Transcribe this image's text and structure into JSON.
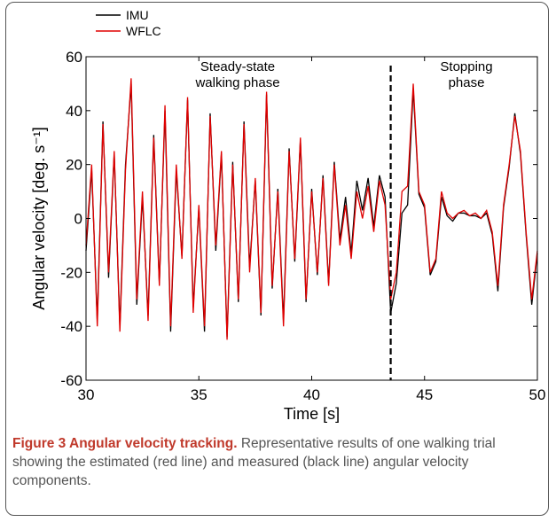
{
  "chart_data": {
    "type": "line",
    "caption_title": "Figure 3 Angular velocity tracking.",
    "caption_text": "Representative results of one walking trial showing the estimated (red line) and measured (black line) angular velocity components.",
    "xlabel": "Time [s]",
    "ylabel": "Angular velocity [deg. s⁻¹]",
    "annotations": [
      [
        "Steady-state",
        "walking phase"
      ],
      [
        "Stopping",
        "phase"
      ]
    ],
    "vline": {
      "x": 43.5,
      "color": "#000000",
      "style": "dashed"
    },
    "xlim": [
      30,
      50
    ],
    "xticks": [
      30,
      35,
      40,
      45,
      50
    ],
    "ylim": [
      -60,
      60
    ],
    "yticks": [
      -60,
      -40,
      -20,
      0,
      20,
      40,
      60
    ],
    "legend": "upper left",
    "x": [
      30,
      30.25,
      30.5,
      30.75,
      31,
      31.25,
      31.5,
      31.75,
      32,
      32.25,
      32.5,
      32.75,
      33,
      33.25,
      33.5,
      33.75,
      34,
      34.25,
      34.5,
      34.75,
      35,
      35.25,
      35.5,
      35.75,
      36,
      36.25,
      36.5,
      36.75,
      37,
      37.25,
      37.5,
      37.75,
      38,
      38.25,
      38.5,
      38.75,
      39,
      39.25,
      39.5,
      39.75,
      40,
      40.25,
      40.5,
      40.75,
      41,
      41.25,
      41.5,
      41.75,
      42,
      42.25,
      42.5,
      42.75,
      43,
      43.25,
      43.5,
      43.75,
      44,
      44.25,
      44.5,
      44.75,
      45,
      45.25,
      45.5,
      45.75,
      46,
      46.25,
      46.5,
      46.75,
      47,
      47.25,
      47.5,
      47.75,
      48,
      48.25,
      48.5,
      48.75,
      49,
      49.25,
      49.5,
      49.75,
      50
    ],
    "series": [
      {
        "name": "IMU",
        "color": "#000000",
        "values": [
          -12,
          18,
          -38,
          36,
          -22,
          24,
          -40,
          20,
          50,
          -32,
          8,
          -36,
          31,
          -24,
          40,
          -42,
          18,
          -14,
          44,
          -33,
          4,
          -42,
          39,
          -12,
          24,
          -44,
          21,
          -31,
          36,
          -18,
          14,
          -36,
          46,
          -26,
          11,
          -38,
          26,
          -16,
          29,
          -31,
          11,
          -21,
          16,
          -24,
          21,
          -8,
          8,
          -13,
          14,
          3,
          15,
          -3,
          16,
          8,
          -35,
          -24,
          2,
          5,
          48,
          9,
          4,
          -21,
          -16,
          8,
          1,
          -1,
          2,
          2,
          1,
          1,
          0,
          2,
          -6,
          -27,
          4,
          19,
          39,
          24,
          -6,
          -32,
          -13
        ]
      },
      {
        "name": "WFLC",
        "color": "#e00000",
        "values": [
          -10,
          20,
          -40,
          35,
          -20,
          25,
          -42,
          18,
          52,
          -30,
          10,
          -38,
          30,
          -25,
          42,
          -40,
          20,
          -15,
          45,
          -35,
          5,
          -40,
          38,
          -10,
          25,
          -45,
          20,
          -30,
          35,
          -20,
          15,
          -35,
          47,
          -25,
          10,
          -40,
          25,
          -15,
          30,
          -30,
          10,
          -20,
          15,
          -25,
          20,
          -10,
          5,
          -15,
          10,
          0,
          12,
          -5,
          14,
          5,
          -30,
          -20,
          10,
          12,
          50,
          10,
          5,
          -20,
          -15,
          10,
          2,
          0,
          2,
          3,
          1,
          2,
          0,
          3,
          -5,
          -25,
          5,
          20,
          38,
          25,
          -5,
          -30,
          -12
        ]
      }
    ]
  }
}
